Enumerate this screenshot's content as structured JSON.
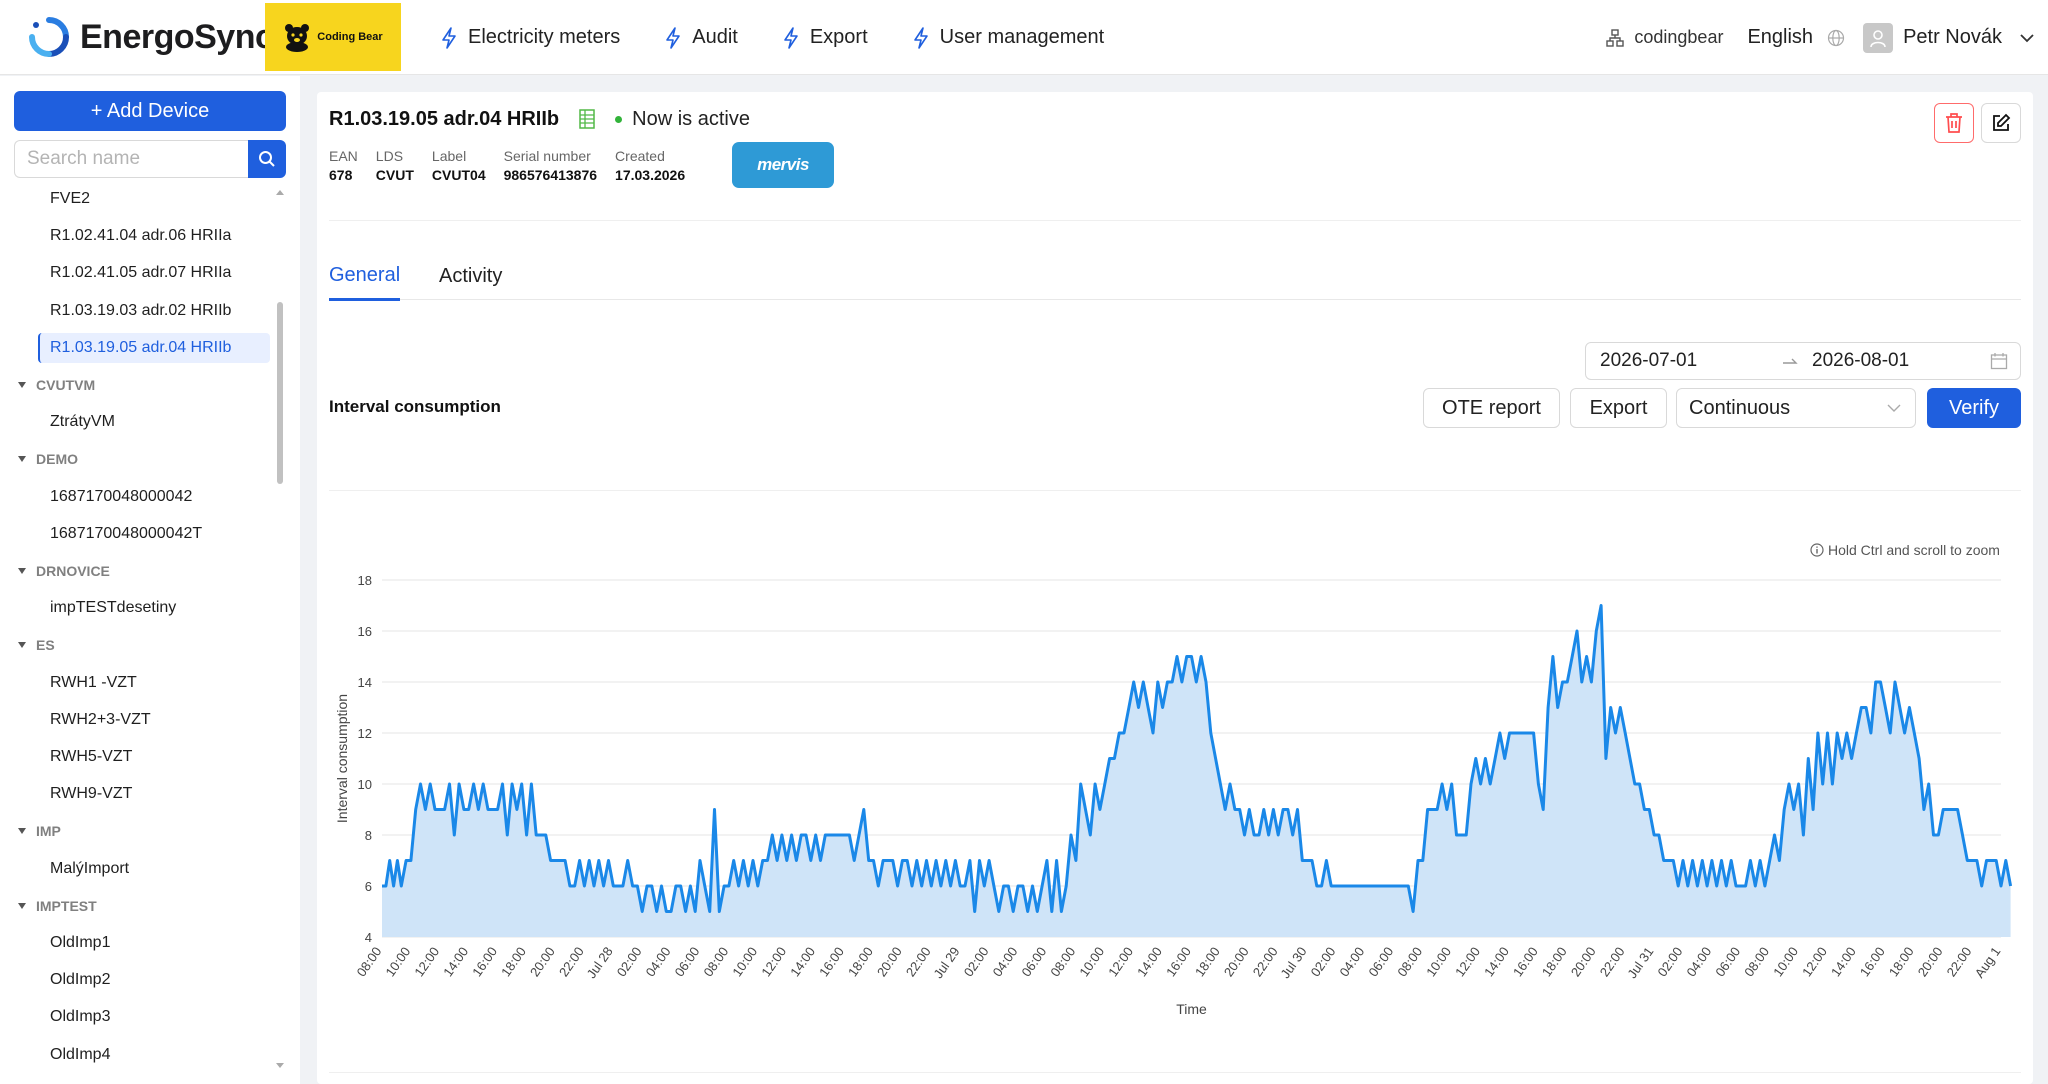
{
  "header": {
    "logo_text": "EnergoSync",
    "brand_label": "Coding Bear",
    "nav": [
      {
        "label": "Electricity meters",
        "icon": "bolt-icon"
      },
      {
        "label": "Audit",
        "icon": "bolt-icon"
      },
      {
        "label": "Export",
        "icon": "bolt-icon"
      },
      {
        "label": "User management",
        "icon": "bolt-icon"
      }
    ],
    "org": "codingbear",
    "language": "English",
    "user_name": "Petr Novák"
  },
  "sidebar": {
    "add_button": "+ Add Device",
    "search_placeholder": "Search name",
    "tree": [
      {
        "type": "leaf",
        "label": "FVE2"
      },
      {
        "type": "leaf",
        "label": "R1.02.41.04 adr.06 HRIIa"
      },
      {
        "type": "leaf",
        "label": "R1.02.41.05 adr.07 HRIIa"
      },
      {
        "type": "leaf",
        "label": "R1.03.19.03 adr.02 HRIIb"
      },
      {
        "type": "leaf",
        "label": "R1.03.19.05 adr.04 HRIIb",
        "selected": true
      },
      {
        "type": "group",
        "label": "CVUTVM"
      },
      {
        "type": "leaf",
        "label": "ZtrátyVM"
      },
      {
        "type": "group",
        "label": "DEMO"
      },
      {
        "type": "leaf",
        "label": "1687170048000042"
      },
      {
        "type": "leaf",
        "label": "1687170048000042T"
      },
      {
        "type": "group",
        "label": "DRNOVICE"
      },
      {
        "type": "leaf",
        "label": "impTESTdesetiny"
      },
      {
        "type": "group",
        "label": "ES"
      },
      {
        "type": "leaf",
        "label": "RWH1 -VZT"
      },
      {
        "type": "leaf",
        "label": "RWH2+3-VZT"
      },
      {
        "type": "leaf",
        "label": "RWH5-VZT"
      },
      {
        "type": "leaf",
        "label": "RWH9-VZT"
      },
      {
        "type": "group",
        "label": "IMP"
      },
      {
        "type": "leaf",
        "label": "MalýImport"
      },
      {
        "type": "group",
        "label": "IMPTEST"
      },
      {
        "type": "leaf",
        "label": "OldImp1"
      },
      {
        "type": "leaf",
        "label": "OldImp2"
      },
      {
        "type": "leaf",
        "label": "OldImp3"
      },
      {
        "type": "leaf",
        "label": "OldImp4"
      }
    ]
  },
  "device": {
    "title": "R1.03.19.05 adr.04 HRIIb",
    "status": "Now is active",
    "meta": [
      {
        "label": "EAN",
        "value": "678"
      },
      {
        "label": "LDS",
        "value": "CVUT"
      },
      {
        "label": "Label",
        "value": "CVUT04"
      },
      {
        "label": "Serial number",
        "value": "986576413876"
      },
      {
        "label": "Created",
        "value": "17.03.2026"
      }
    ],
    "integration_badge": "mervis"
  },
  "tabs": [
    {
      "label": "General",
      "active": true
    },
    {
      "label": "Activity",
      "active": false
    }
  ],
  "toolbar": {
    "date_from": "2026-07-01",
    "date_to": "2026-08-01",
    "section_title": "Interval consumption",
    "ote_label": "OTE report",
    "export_label": "Export",
    "mode_value": "Continuous",
    "verify_label": "Verify",
    "zoom_hint": "Hold Ctrl and scroll to zoom"
  },
  "colors": {
    "accent": "#1f5fde",
    "line": "#1a88e8",
    "fill": "#cfe4f8",
    "active_dot": "#32b33a",
    "delete": "#ff4d4f"
  },
  "chart_data": {
    "type": "area",
    "xlabel": "Time",
    "ylabel": "Interval consumption",
    "ylim": [
      4,
      18
    ],
    "yticks": [
      4,
      6,
      8,
      10,
      12,
      14,
      16,
      18
    ],
    "grid": true,
    "x_tick_labels": [
      "08:00",
      "10:00",
      "12:00",
      "14:00",
      "16:00",
      "18:00",
      "20:00",
      "22:00",
      "Jul 28",
      "02:00",
      "04:00",
      "06:00",
      "08:00",
      "10:00",
      "12:00",
      "14:00",
      "16:00",
      "18:00",
      "20:00",
      "22:00",
      "Jul 29",
      "02:00",
      "04:00",
      "06:00",
      "08:00",
      "10:00",
      "12:00",
      "14:00",
      "16:00",
      "18:00",
      "20:00",
      "22:00",
      "Jul 30",
      "02:00",
      "04:00",
      "06:00",
      "08:00",
      "10:00",
      "12:00",
      "14:00",
      "16:00",
      "18:00",
      "20:00",
      "22:00",
      "Jul 31",
      "02:00",
      "04:00",
      "06:00",
      "08:00",
      "10:00",
      "12:00",
      "14:00",
      "16:00",
      "18:00",
      "20:00",
      "22:00",
      "Aug 1"
    ],
    "hours": [
      {
        "h": 0,
        "v": [
          6,
          6,
          7,
          6,
          7
        ]
      },
      {
        "h": 1,
        "v": [
          6,
          7,
          7,
          9
        ]
      },
      {
        "h": 2,
        "v": [
          10,
          9,
          10,
          9
        ]
      },
      {
        "h": 3,
        "v": [
          9,
          9,
          10,
          8
        ]
      },
      {
        "h": 4,
        "v": [
          10,
          9,
          9,
          10
        ]
      },
      {
        "h": 5,
        "v": [
          9,
          10,
          9,
          9
        ]
      },
      {
        "h": 6,
        "v": [
          9,
          10,
          8,
          10
        ]
      },
      {
        "h": 7,
        "v": [
          9,
          10,
          8,
          10
        ]
      },
      {
        "h": 8,
        "v": [
          8,
          8,
          8,
          7
        ]
      },
      {
        "h": 9,
        "v": [
          7,
          7,
          7,
          6
        ]
      },
      {
        "h": 10,
        "v": [
          6,
          7,
          6,
          7
        ]
      },
      {
        "h": 11,
        "v": [
          6,
          7,
          6,
          7
        ]
      },
      {
        "h": 12,
        "v": [
          6,
          6,
          6,
          7
        ]
      },
      {
        "h": 13,
        "v": [
          6,
          6,
          5,
          6
        ]
      },
      {
        "h": 14,
        "v": [
          6,
          5,
          6,
          5
        ]
      },
      {
        "h": 15,
        "v": [
          5,
          6,
          6,
          5
        ]
      },
      {
        "h": 16,
        "v": [
          6,
          5,
          7,
          6
        ]
      },
      {
        "h": 17,
        "v": [
          5,
          9,
          5,
          6
        ]
      },
      {
        "h": 18,
        "v": [
          6,
          7,
          6,
          7
        ]
      },
      {
        "h": 19,
        "v": [
          6,
          7,
          6,
          7
        ]
      },
      {
        "h": 20,
        "v": [
          7,
          8,
          7,
          8
        ]
      },
      {
        "h": 21,
        "v": [
          7,
          8,
          7,
          8
        ]
      },
      {
        "h": 22,
        "v": [
          8,
          7,
          8,
          7
        ]
      },
      {
        "h": 23,
        "v": [
          8,
          8,
          8,
          8
        ]
      },
      {
        "h": 24,
        "v": [
          8,
          8,
          7,
          8
        ]
      },
      {
        "h": 25,
        "v": [
          9,
          7,
          7,
          6
        ]
      },
      {
        "h": 26,
        "v": [
          7,
          7,
          7,
          6
        ]
      },
      {
        "h": 27,
        "v": [
          7,
          7,
          6,
          7
        ]
      },
      {
        "h": 28,
        "v": [
          6,
          7,
          6,
          7
        ]
      },
      {
        "h": 29,
        "v": [
          6,
          7,
          6,
          7
        ]
      },
      {
        "h": 30,
        "v": [
          6,
          6,
          7,
          5
        ]
      },
      {
        "h": 31,
        "v": [
          7,
          6,
          7,
          6
        ]
      },
      {
        "h": 32,
        "v": [
          5,
          6,
          6,
          5
        ]
      },
      {
        "h": 33,
        "v": [
          6,
          6,
          5,
          6
        ]
      },
      {
        "h": 34,
        "v": [
          5,
          6,
          7,
          5
        ]
      },
      {
        "h": 35,
        "v": [
          7,
          5,
          6,
          8
        ]
      },
      {
        "h": 36,
        "v": [
          7,
          10,
          9,
          8
        ]
      },
      {
        "h": 37,
        "v": [
          10,
          9,
          10,
          11
        ]
      },
      {
        "h": 38,
        "v": [
          11,
          12,
          12,
          13
        ]
      },
      {
        "h": 39,
        "v": [
          14,
          13,
          14,
          13
        ]
      },
      {
        "h": 40,
        "v": [
          12,
          14,
          13,
          14
        ]
      },
      {
        "h": 41,
        "v": [
          14,
          15,
          14,
          15
        ]
      },
      {
        "h": 42,
        "v": [
          15,
          14,
          15,
          14
        ]
      },
      {
        "h": 43,
        "v": [
          12,
          11,
          10,
          9
        ]
      },
      {
        "h": 44,
        "v": [
          10,
          9,
          9,
          8
        ]
      },
      {
        "h": 45,
        "v": [
          9,
          8,
          8,
          9
        ]
      },
      {
        "h": 46,
        "v": [
          8,
          9,
          8,
          9
        ]
      },
      {
        "h": 47,
        "v": [
          9,
          8,
          9,
          7
        ]
      },
      {
        "h": 48,
        "v": [
          7,
          7,
          6,
          6
        ]
      },
      {
        "h": 49,
        "v": [
          7,
          6,
          6,
          6
        ]
      },
      {
        "h": 50,
        "v": [
          6,
          6,
          6,
          6
        ]
      },
      {
        "h": 51,
        "v": [
          6,
          6,
          6,
          6
        ]
      },
      {
        "h": 52,
        "v": [
          6,
          6,
          6,
          6
        ]
      },
      {
        "h": 53,
        "v": [
          6,
          6,
          5,
          7
        ]
      },
      {
        "h": 54,
        "v": [
          7,
          9,
          9,
          9
        ]
      },
      {
        "h": 55,
        "v": [
          10,
          9,
          10,
          8
        ]
      },
      {
        "h": 56,
        "v": [
          8,
          8,
          10,
          11
        ]
      },
      {
        "h": 57,
        "v": [
          10,
          11,
          10,
          11
        ]
      },
      {
        "h": 58,
        "v": [
          12,
          11,
          12,
          12
        ]
      },
      {
        "h": 59,
        "v": [
          12,
          12,
          12,
          12
        ]
      },
      {
        "h": 60,
        "v": [
          10,
          9,
          13,
          15
        ]
      },
      {
        "h": 61,
        "v": [
          13,
          14,
          14,
          15
        ]
      },
      {
        "h": 62,
        "v": [
          16,
          14,
          15,
          14
        ]
      },
      {
        "h": 63,
        "v": [
          16,
          17,
          11,
          13
        ]
      },
      {
        "h": 64,
        "v": [
          12,
          13,
          12,
          11
        ]
      },
      {
        "h": 65,
        "v": [
          10,
          10,
          9,
          9
        ]
      },
      {
        "h": 66,
        "v": [
          8,
          8,
          7,
          7
        ]
      },
      {
        "h": 67,
        "v": [
          7,
          6,
          7,
          6
        ]
      },
      {
        "h": 68,
        "v": [
          7,
          6,
          7,
          6
        ]
      },
      {
        "h": 69,
        "v": [
          7,
          6,
          7,
          6
        ]
      },
      {
        "h": 70,
        "v": [
          7,
          6,
          6,
          6
        ]
      },
      {
        "h": 71,
        "v": [
          7,
          6,
          7,
          6
        ]
      },
      {
        "h": 72,
        "v": [
          7,
          8,
          7,
          9
        ]
      },
      {
        "h": 73,
        "v": [
          10,
          9,
          10,
          8
        ]
      },
      {
        "h": 74,
        "v": [
          11,
          9,
          12,
          10
        ]
      },
      {
        "h": 75,
        "v": [
          12,
          10,
          12,
          11
        ]
      },
      {
        "h": 76,
        "v": [
          12,
          11,
          12,
          13
        ]
      },
      {
        "h": 77,
        "v": [
          13,
          12,
          14,
          14
        ]
      },
      {
        "h": 78,
        "v": [
          13,
          12,
          14,
          13
        ]
      },
      {
        "h": 79,
        "v": [
          12,
          13,
          12,
          11
        ]
      },
      {
        "h": 80,
        "v": [
          9,
          10,
          8,
          8
        ]
      },
      {
        "h": 81,
        "v": [
          9,
          9,
          9,
          9
        ]
      },
      {
        "h": 82,
        "v": [
          8,
          7,
          7,
          7
        ]
      },
      {
        "h": 83,
        "v": [
          6,
          7,
          7,
          7
        ]
      },
      {
        "h": 84,
        "v": [
          6,
          7,
          6
        ]
      }
    ]
  }
}
